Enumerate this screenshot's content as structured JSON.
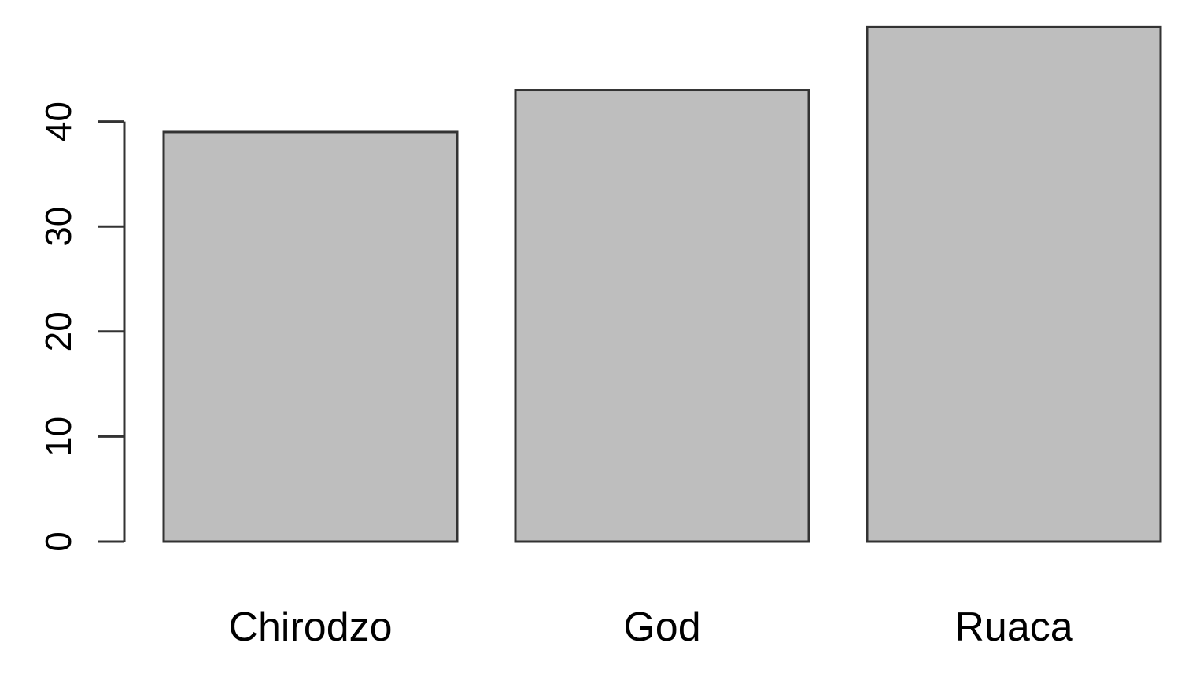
{
  "chart_data": {
    "type": "bar",
    "title": "",
    "xlabel": "",
    "ylabel": "",
    "categories": [
      "Chirodzo",
      "God",
      "Ruaca"
    ],
    "values": [
      39,
      43,
      49
    ],
    "ylim": [
      0,
      49
    ],
    "yticks": [
      "0",
      "10",
      "20",
      "30",
      "40"
    ],
    "grid": false,
    "legend": "none",
    "colors": {
      "bar_fill": "#bebebe",
      "bar_stroke": "#333333",
      "axis": "#333333"
    }
  }
}
